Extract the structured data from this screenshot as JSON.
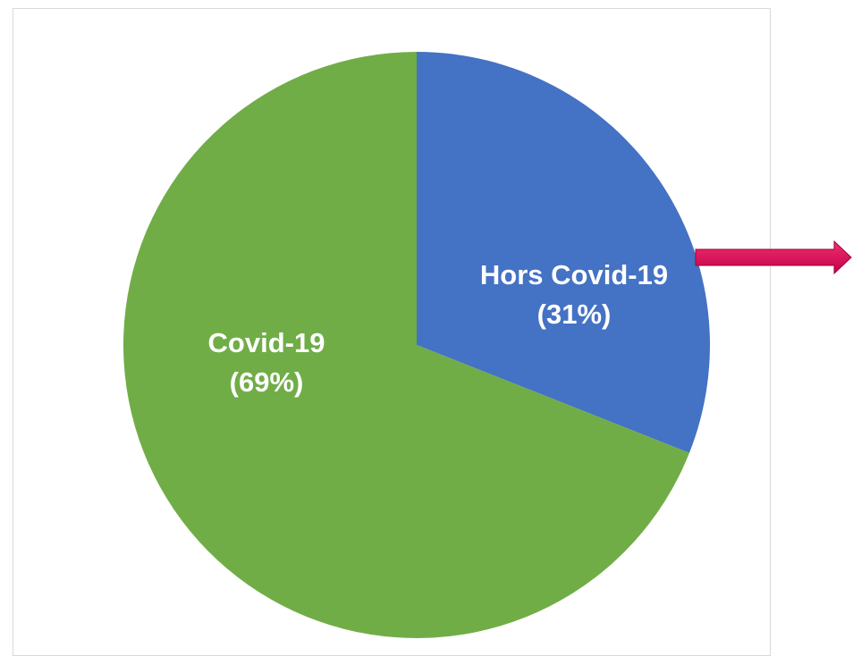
{
  "chart_data": {
    "type": "pie",
    "slices": [
      {
        "name": "Hors Covid-19",
        "percent_label": "(31%)",
        "value": 31,
        "color": "#4472c4"
      },
      {
        "name": "Covid-19",
        "percent_label": "(69%)",
        "value": 69,
        "color": "#70ad47"
      }
    ],
    "start_angle": "12 o'clock",
    "direction": "clockwise",
    "annotation_arrow_color": "#e0115f"
  }
}
